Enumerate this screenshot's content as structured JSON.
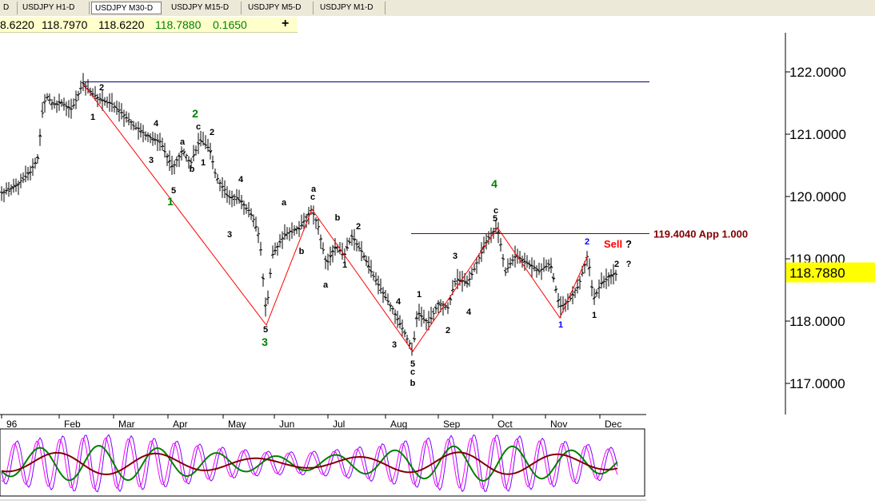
{
  "tabs": [
    {
      "label": "D"
    },
    {
      "label": "USDJPY  H1-D"
    },
    {
      "label": "USDJPY  M30-D"
    },
    {
      "label": "USDJPY  M15-D"
    },
    {
      "label": "USDJPY  M5-D"
    },
    {
      "label": "USDJPY  M1-D"
    }
  ],
  "quote": {
    "v1": "8.6220",
    "v2": "118.7970",
    "v3": "118.6220",
    "v4": "118.7880",
    "change": "0.1650",
    "plus": "+",
    "change_color": "#008000"
  },
  "chart_data": {
    "type": "line",
    "instrument": "USDJPY",
    "price_axis": {
      "ticks": [
        "122.0000",
        "121.0000",
        "120.0000",
        "119.0000",
        "118.0000",
        "117.0000"
      ],
      "range": [
        116.6,
        122.5
      ],
      "current": "118.7880",
      "current_color": "#ffff00"
    },
    "time_axis": {
      "ticks": [
        "96",
        "Feb",
        "Mar",
        "Apr",
        "May",
        "Jun",
        "Jul",
        "Aug",
        "Sep",
        "Oct",
        "Nov",
        "Dec"
      ]
    },
    "target_line": {
      "price": 119.404,
      "label": "119.4040 App 1.000",
      "color": "#800000"
    },
    "resistance_line": {
      "price": 121.84,
      "color": "#000080"
    },
    "sell_label": {
      "text": "Sell",
      "q": "?",
      "color": "#ff0000"
    },
    "wave_labels": [
      {
        "t": "1",
        "c": "#000"
      },
      {
        "t": "2",
        "c": "#000"
      },
      {
        "t": "4",
        "c": "#000"
      },
      {
        "t": "3",
        "c": "#000"
      },
      {
        "t": "5",
        "c": "#000"
      },
      {
        "t": "a",
        "c": "#000"
      },
      {
        "t": "b",
        "c": "#000"
      },
      {
        "t": "c",
        "c": "#000"
      },
      {
        "t": "1",
        "c": "#000"
      },
      {
        "t": "2",
        "c": "#000"
      },
      {
        "t": "2",
        "c": "#008000"
      },
      {
        "t": "1",
        "c": "#008000"
      },
      {
        "t": "4",
        "c": "#000"
      },
      {
        "t": "3",
        "c": "#000"
      },
      {
        "t": "5",
        "c": "#000"
      },
      {
        "t": "3",
        "c": "#008000"
      },
      {
        "t": "a",
        "c": "#000"
      },
      {
        "t": "c",
        "c": "#000"
      },
      {
        "t": "a",
        "c": "#000"
      },
      {
        "t": "b",
        "c": "#000"
      },
      {
        "t": "b",
        "c": "#000"
      },
      {
        "t": "a",
        "c": "#000"
      },
      {
        "t": "1",
        "c": "#000"
      },
      {
        "t": "2",
        "c": "#000"
      },
      {
        "t": "4",
        "c": "#000"
      },
      {
        "t": "3",
        "c": "#000"
      },
      {
        "t": "5",
        "c": "#000"
      },
      {
        "t": "c",
        "c": "#000"
      },
      {
        "t": "b",
        "c": "#000"
      },
      {
        "t": "1",
        "c": "#000"
      },
      {
        "t": "2",
        "c": "#000"
      },
      {
        "t": "3",
        "c": "#000"
      },
      {
        "t": "4",
        "c": "#000"
      },
      {
        "t": "4",
        "c": "#008000"
      },
      {
        "t": "c",
        "c": "#000"
      },
      {
        "t": "5",
        "c": "#000"
      },
      {
        "t": "2",
        "c": "#0000ff"
      },
      {
        "t": "1",
        "c": "#0000ff"
      },
      {
        "t": "1",
        "c": "#000"
      },
      {
        "t": "2",
        "c": "#000"
      },
      {
        "t": "?",
        "c": "#000"
      }
    ]
  }
}
